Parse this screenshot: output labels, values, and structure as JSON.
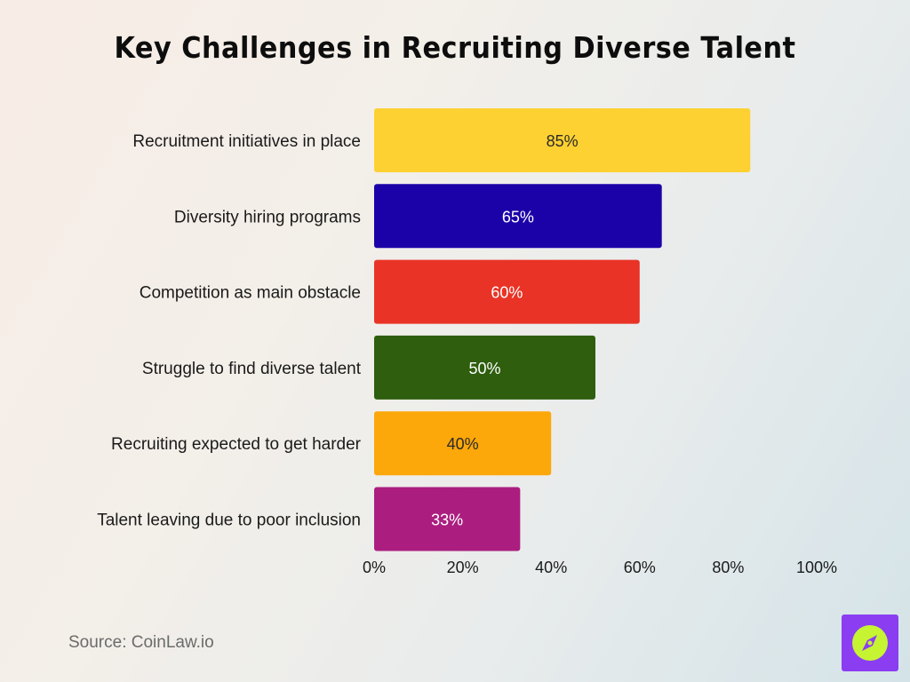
{
  "source": "Source: CoinLaw.io",
  "chart_data": {
    "type": "bar",
    "orientation": "horizontal",
    "title": "Key Challenges in Recruiting Diverse Talent",
    "categories": [
      "Recruitment initiatives in place",
      "Diversity hiring programs",
      "Competition as main obstacle",
      "Struggle to find diverse talent",
      "Recruiting expected to get harder",
      "Talent leaving due to poor inclusion"
    ],
    "values": [
      85,
      65,
      60,
      50,
      40,
      33
    ],
    "value_labels": [
      "85%",
      "65%",
      "60%",
      "50%",
      "40%",
      "33%"
    ],
    "colors": [
      "#fdd132",
      "#1b02a8",
      "#e93326",
      "#2e5e0e",
      "#fca70a",
      "#ab1e7f"
    ],
    "label_colors": [
      "#2a2a2a",
      "#ffffff",
      "#ffffff",
      "#ffffff",
      "#2a2a2a",
      "#ffffff"
    ],
    "xlim": [
      0,
      100
    ],
    "x_ticks": [
      "0%",
      "20%",
      "40%",
      "60%",
      "80%",
      "100%"
    ],
    "grid": false,
    "legend": "none"
  },
  "logo": {
    "icon": "compass-icon",
    "background": "#8b3df2",
    "accent": "#c6f432"
  }
}
